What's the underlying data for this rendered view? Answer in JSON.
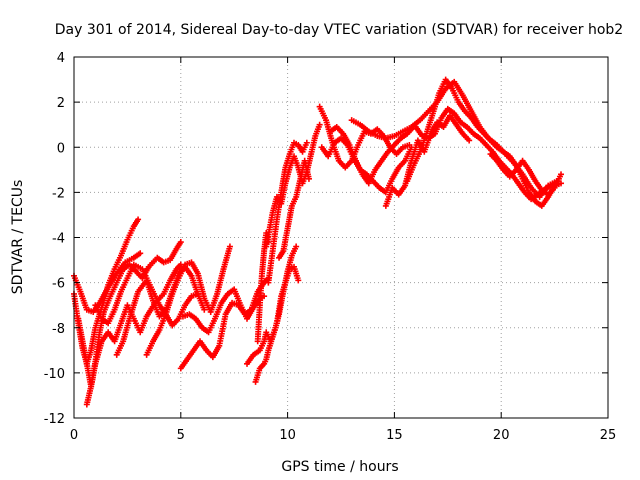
{
  "chart_data": {
    "type": "scatter",
    "title": "Day 301 of 2014, Sidereal Day-to-day VTEC variation (SDTVAR) for receiver hob2",
    "xlabel": "GPS time / hours",
    "ylabel": "SDTVAR / TECUs",
    "xlim": [
      0,
      25
    ],
    "ylim": [
      -12,
      4
    ],
    "xticks": [
      "0",
      "5",
      "10",
      "15",
      "20",
      "25"
    ],
    "yticks": [
      "4",
      "2",
      "0",
      "-2",
      "-4",
      "-6",
      "-8",
      "-10",
      "-12"
    ],
    "grid": true,
    "legend": "none",
    "marker": "plus",
    "series": [
      {
        "color": "#ff0000",
        "x": [
          0.0,
          0.3,
          0.6,
          0.9,
          1.2,
          1.6,
          2.0,
          2.4,
          2.8,
          3.1
        ],
        "y": [
          -5.7,
          -6.4,
          -7.2,
          -7.3,
          -6.9,
          -6.2,
          -5.6,
          -5.1,
          -4.9,
          -4.7
        ]
      },
      {
        "color": "#ff0000",
        "x": [
          0.0,
          0.2,
          0.4,
          0.6,
          0.8,
          1.0,
          1.2,
          1.4,
          1.6,
          1.9,
          2.2,
          2.5,
          2.8,
          3.0
        ],
        "y": [
          -6.5,
          -7.8,
          -8.9,
          -9.6,
          -9.0,
          -8.0,
          -7.4,
          -6.8,
          -6.1,
          -5.4,
          -4.8,
          -4.1,
          -3.5,
          -3.2
        ]
      },
      {
        "color": "#ff0000",
        "x": [
          0.2,
          0.4,
          0.6,
          0.8,
          1.0,
          1.2,
          1.4,
          1.7,
          2.0,
          2.3,
          2.6,
          2.9,
          3.2,
          3.5,
          3.9,
          4.2,
          4.5,
          4.8,
          5.0
        ],
        "y": [
          -7.6,
          -8.6,
          -9.6,
          -10.6,
          -9.5,
          -8.2,
          -7.3,
          -6.6,
          -6.0,
          -5.4,
          -5.2,
          -5.5,
          -5.8,
          -5.3,
          -4.9,
          -5.1,
          -5.0,
          -4.5,
          -4.2
        ]
      },
      {
        "color": "#ff0000",
        "x": [
          0.6,
          0.8,
          1.0,
          1.3,
          1.6,
          1.9,
          2.2,
          2.5,
          2.8,
          3.1,
          3.4,
          3.8,
          4.2,
          4.5,
          4.8,
          5.0
        ],
        "y": [
          -11.4,
          -10.6,
          -9.6,
          -8.6,
          -8.2,
          -8.6,
          -7.8,
          -7.0,
          -7.6,
          -8.2,
          -7.5,
          -6.9,
          -6.5,
          -5.9,
          -5.4,
          -5.2
        ]
      },
      {
        "color": "#ff0000",
        "x": [
          1.0,
          1.3,
          1.6,
          1.9,
          2.2,
          2.5,
          2.8,
          3.2,
          3.6,
          4.0,
          4.3,
          4.6,
          4.9,
          5.2,
          5.5,
          5.8
        ],
        "y": [
          -7.0,
          -7.6,
          -7.8,
          -7.2,
          -6.4,
          -5.8,
          -5.2,
          -5.4,
          -6.2,
          -7.0,
          -7.4,
          -7.9,
          -7.6,
          -7.0,
          -6.6,
          -6.5
        ]
      },
      {
        "color": "#ff0000",
        "x": [
          2.0,
          2.3,
          2.6,
          3.0,
          3.4,
          3.7,
          4.0,
          4.3,
          4.6,
          4.9,
          5.2,
          5.5,
          5.8,
          6.1
        ],
        "y": [
          -9.2,
          -8.6,
          -7.6,
          -6.4,
          -5.9,
          -6.8,
          -7.5,
          -7.2,
          -6.4,
          -5.6,
          -5.3,
          -5.7,
          -6.5,
          -7.2
        ]
      },
      {
        "color": "#ff0000",
        "x": [
          3.4,
          3.7,
          4.0,
          4.3,
          4.6,
          4.9,
          5.2,
          5.5,
          5.8,
          6.1,
          6.4,
          6.7,
          7.0,
          7.3
        ],
        "y": [
          -9.2,
          -8.6,
          -8.1,
          -7.4,
          -6.5,
          -5.8,
          -5.2,
          -5.1,
          -5.6,
          -6.7,
          -7.3,
          -6.5,
          -5.4,
          -4.4
        ]
      },
      {
        "color": "#ff0000",
        "x": [
          5.0,
          5.3,
          5.6,
          5.9,
          6.2,
          6.5,
          6.8,
          7.1,
          7.4,
          7.7,
          8.0,
          8.3,
          8.6,
          8.9,
          9.1
        ],
        "y": [
          -9.8,
          -9.4,
          -9.0,
          -8.6,
          -9.0,
          -9.3,
          -8.8,
          -7.4,
          -6.9,
          -7.0,
          -7.4,
          -7.2,
          -6.4,
          -6.0,
          -5.8
        ]
      },
      {
        "color": "#ff0000",
        "x": [
          5.1,
          5.4,
          5.7,
          6.0,
          6.3,
          6.6,
          6.9,
          7.2,
          7.5,
          7.8,
          8.1,
          8.4,
          8.7,
          8.9
        ],
        "y": [
          -7.5,
          -7.4,
          -7.6,
          -8.0,
          -8.2,
          -7.6,
          -6.9,
          -6.5,
          -6.3,
          -7.0,
          -7.6,
          -7.1,
          -6.7,
          -6.6
        ]
      },
      {
        "color": "#ff0000",
        "x": [
          8.1,
          8.4,
          8.7,
          8.9,
          9.0,
          9.2,
          9.4,
          9.6,
          9.8,
          10.0,
          10.2,
          10.4
        ],
        "y": [
          -9.6,
          -9.2,
          -9.0,
          -8.6,
          -8.2,
          -8.6,
          -8.1,
          -7.4,
          -6.4,
          -5.5,
          -4.8,
          -4.4
        ]
      },
      {
        "color": "#ff0000",
        "x": [
          8.5,
          8.7,
          8.9,
          9.0,
          9.1,
          9.3,
          9.5,
          9.7,
          9.9,
          10.1,
          10.3,
          10.5
        ],
        "y": [
          -10.4,
          -9.8,
          -9.6,
          -9.4,
          -9.0,
          -8.4,
          -7.8,
          -6.6,
          -6.0,
          -5.4,
          -5.3,
          -5.9
        ]
      },
      {
        "color": "#ff0000",
        "x": [
          8.6,
          8.7,
          8.8,
          8.9,
          9.0,
          9.1
        ],
        "y": [
          -8.6,
          -7.0,
          -5.6,
          -4.6,
          -3.8,
          -4.2
        ]
      },
      {
        "color": "#ff0000",
        "x": [
          9.0,
          9.3,
          9.5,
          9.7,
          9.9,
          10.1,
          10.3,
          10.5,
          10.7,
          10.9,
          11.1,
          11.3,
          11.5
        ],
        "y": [
          -4.4,
          -2.9,
          -2.2,
          -2.5,
          -1.6,
          -0.9,
          -0.4,
          -0.9,
          -1.6,
          -1.1,
          -0.3,
          0.5,
          1.0
        ]
      },
      {
        "color": "#ff0000",
        "x": [
          9.1,
          9.3,
          9.5,
          9.7,
          9.9,
          10.1,
          10.3,
          10.5,
          10.7,
          10.9
        ],
        "y": [
          -6.0,
          -4.6,
          -3.2,
          -2.0,
          -0.9,
          -0.3,
          0.2,
          0.1,
          -0.2,
          0.2
        ]
      },
      {
        "color": "#ff0000",
        "x": [
          9.6,
          9.8,
          10.0,
          10.2,
          10.4,
          10.6,
          10.8,
          11.0
        ],
        "y": [
          -4.9,
          -4.6,
          -3.6,
          -2.6,
          -2.2,
          -1.4,
          -0.6,
          -1.4
        ]
      },
      {
        "color": "#ff0000",
        "x": [
          11.5,
          11.8,
          12.1,
          12.4,
          12.7,
          13.0,
          13.3,
          13.6,
          13.9,
          14.2,
          14.5,
          14.8,
          15.1,
          15.4,
          15.7
        ],
        "y": [
          1.8,
          1.2,
          0.2,
          -0.6,
          -0.9,
          -0.6,
          0.1,
          0.7,
          0.6,
          0.8,
          0.5,
          0.0,
          -0.3,
          0.0,
          0.1
        ]
      },
      {
        "color": "#ff0000",
        "x": [
          11.6,
          11.9,
          12.2,
          12.5,
          12.8,
          13.1,
          13.4,
          13.7,
          14.0,
          14.3,
          14.6,
          14.9,
          15.2,
          15.5,
          15.8
        ],
        "y": [
          0.0,
          -0.4,
          0.2,
          0.4,
          0.1,
          -0.5,
          -1.0,
          -1.2,
          -1.5,
          -1.8,
          -2.0,
          -1.4,
          -0.9,
          -0.6,
          0.0
        ]
      },
      {
        "color": "#ff0000",
        "x": [
          12.0,
          12.3,
          12.6,
          12.9,
          13.2,
          13.5,
          13.8,
          14.1,
          14.4,
          14.7,
          15.0,
          15.3,
          15.6,
          15.9
        ],
        "y": [
          0.7,
          0.9,
          0.6,
          0.1,
          -0.6,
          -1.2,
          -1.6,
          -1.0,
          -0.6,
          -0.2,
          0.1,
          0.4,
          0.6,
          0.9
        ]
      },
      {
        "color": "#ff0000",
        "x": [
          13.0,
          13.4,
          13.8,
          14.2,
          14.6,
          15.0,
          15.4,
          15.8,
          16.2,
          16.6,
          17.0,
          17.4,
          17.8,
          18.2,
          18.6,
          19.0,
          19.4,
          19.8,
          20.2,
          20.6,
          21.0,
          21.4,
          21.8,
          22.2,
          22.6
        ],
        "y": [
          1.2,
          1.0,
          0.7,
          0.5,
          0.4,
          0.5,
          0.7,
          0.9,
          1.2,
          1.6,
          2.0,
          2.6,
          2.9,
          2.3,
          1.6,
          0.9,
          0.4,
          0.1,
          -0.3,
          -0.7,
          -1.2,
          -1.8,
          -2.2,
          -1.7,
          -1.5
        ]
      },
      {
        "color": "#ff0000",
        "x": [
          14.6,
          14.9,
          15.2,
          15.5,
          15.8,
          16.1,
          16.4,
          16.7,
          17.0,
          17.3,
          17.6,
          17.9,
          18.2,
          18.5
        ],
        "y": [
          -2.6,
          -1.8,
          -2.1,
          -1.7,
          -0.6,
          0.3,
          -0.2,
          0.6,
          1.1,
          0.9,
          1.4,
          1.0,
          0.6,
          0.3
        ]
      },
      {
        "color": "#ff0000",
        "x": [
          15.6,
          15.9,
          16.2,
          16.5,
          16.8,
          17.1,
          17.4,
          17.7,
          18.0,
          18.3,
          18.6,
          18.9,
          19.2,
          19.5,
          19.8,
          20.1,
          20.4,
          20.7,
          21.0,
          21.3,
          21.6,
          21.9,
          22.2,
          22.5,
          22.8
        ],
        "y": [
          -1.5,
          -0.8,
          -0.2,
          0.6,
          1.5,
          2.4,
          3.0,
          2.6,
          2.0,
          1.6,
          1.3,
          0.9,
          0.6,
          0.3,
          0.0,
          -0.2,
          -0.4,
          -0.8,
          -1.4,
          -2.0,
          -2.4,
          -2.6,
          -2.2,
          -1.7,
          -1.6
        ]
      },
      {
        "color": "#ff0000",
        "x": [
          16.0,
          16.3,
          16.6,
          16.9,
          17.2,
          17.5,
          17.8,
          18.1,
          18.4,
          18.7,
          19.0,
          19.3,
          19.6,
          19.9,
          20.2,
          20.5,
          20.8,
          21.1,
          21.4,
          21.7,
          22.0,
          22.3,
          22.6
        ],
        "y": [
          0.9,
          0.5,
          0.4,
          0.6,
          1.3,
          1.7,
          1.5,
          1.1,
          0.9,
          0.6,
          0.4,
          0.1,
          -0.2,
          -0.6,
          -0.9,
          -1.2,
          -1.6,
          -2.0,
          -2.3,
          -2.1,
          -1.9,
          -1.7,
          -1.6
        ]
      },
      {
        "color": "#ff0000",
        "x": [
          19.5,
          19.8,
          20.1,
          20.4,
          20.7,
          21.0,
          21.3,
          21.6,
          21.9,
          22.2,
          22.5,
          22.8
        ],
        "y": [
          -0.3,
          -0.6,
          -1.0,
          -1.3,
          -1.0,
          -0.6,
          -1.0,
          -1.5,
          -1.9,
          -2.1,
          -1.8,
          -1.2
        ]
      }
    ]
  }
}
